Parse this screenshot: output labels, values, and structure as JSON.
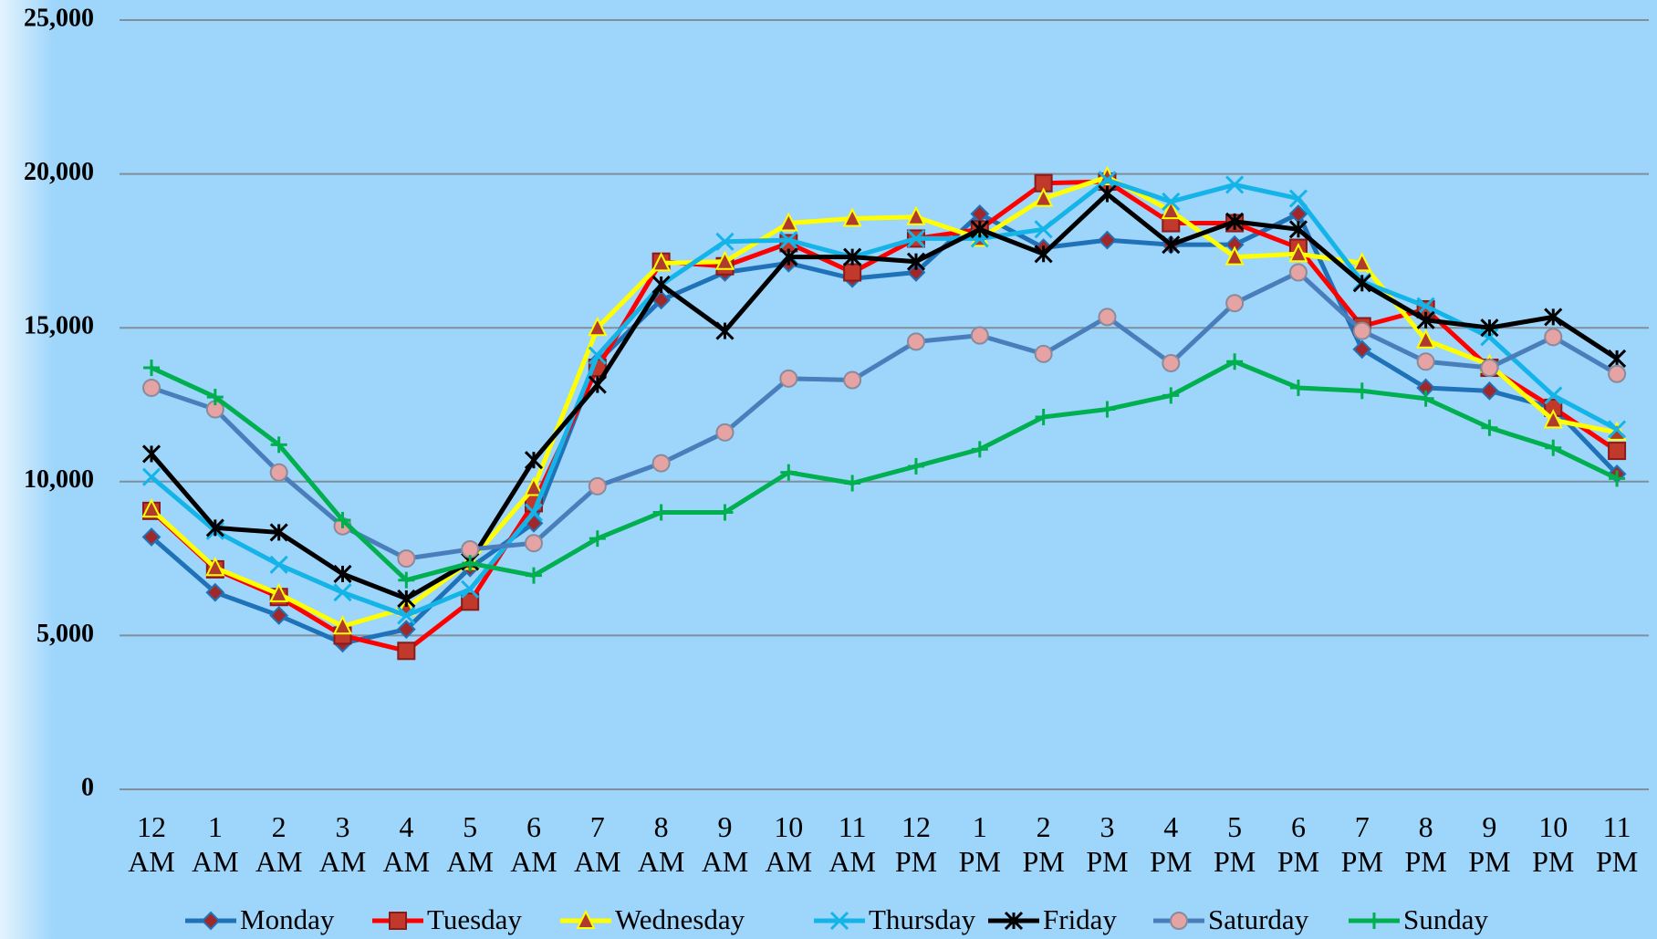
{
  "chart_data": {
    "type": "line",
    "categories": [
      "12 AM",
      "1 AM",
      "2 AM",
      "3 AM",
      "4 AM",
      "5 AM",
      "6 AM",
      "7 AM",
      "8 AM",
      "9 AM",
      "10 AM",
      "11 AM",
      "12 PM",
      "1 PM",
      "2 PM",
      "3 PM",
      "4 PM",
      "5 PM",
      "6 PM",
      "7 PM",
      "8 PM",
      "9 PM",
      "10 PM",
      "11 PM"
    ],
    "ylim": [
      0,
      25000
    ],
    "yticks": [
      0,
      {
        "value": 5000,
        "label": "5,000"
      },
      {
        "value": 10000,
        "label": "10,000"
      },
      {
        "value": 15000,
        "label": "15,000"
      },
      {
        "value": 20000,
        "label": "20,000"
      },
      {
        "value": 25000,
        "label": "25,000"
      }
    ],
    "grid": true,
    "legend": "bottom",
    "series": [
      {
        "name": "Monday",
        "color": "#1f72b8",
        "marker": "diamond",
        "marker_color": "#a0282a",
        "values": [
          8200,
          6400,
          5650,
          4750,
          5200,
          7200,
          8650,
          13900,
          15900,
          16800,
          17100,
          16600,
          16800,
          18700,
          17600,
          17850,
          17700,
          17700,
          18700,
          14300,
          13050,
          12950,
          12400,
          10250
        ]
      },
      {
        "name": "Tuesday",
        "color": "#ff0000",
        "marker": "square",
        "marker_color": "#c0392b",
        "values": [
          9050,
          7150,
          6250,
          5000,
          4500,
          6100,
          9300,
          13700,
          17150,
          17000,
          17750,
          16800,
          17900,
          18200,
          19700,
          19750,
          18400,
          18400,
          17600,
          15050,
          15600,
          13700,
          12400,
          11000
        ]
      },
      {
        "name": "Wednesday",
        "color": "#ffff00",
        "marker": "triangle",
        "marker_color": "#b03a2e",
        "values": [
          9100,
          7200,
          6350,
          5300,
          5900,
          7400,
          9800,
          15000,
          17100,
          17150,
          18400,
          18550,
          18600,
          17900,
          19200,
          19900,
          18800,
          17300,
          17400,
          17100,
          14600,
          13800,
          12000,
          11600
        ]
      },
      {
        "name": "Thursday",
        "color": "#14b4e8",
        "marker": "x",
        "marker_color": "#14b4e8",
        "values": [
          10150,
          8400,
          7300,
          6400,
          5650,
          6500,
          9000,
          14100,
          16400,
          17800,
          17850,
          17300,
          17900,
          17900,
          18200,
          19800,
          19100,
          19650,
          19200,
          16500,
          15700,
          14700,
          12800,
          11700
        ]
      },
      {
        "name": "Friday",
        "color": "#000000",
        "marker": "star",
        "marker_color": "#000000",
        "values": [
          10900,
          8500,
          8350,
          7000,
          6200,
          7400,
          10700,
          13150,
          16400,
          14900,
          17300,
          17300,
          17150,
          18200,
          17400,
          19350,
          17700,
          18450,
          18200,
          16450,
          15250,
          15000,
          15350,
          14000
        ]
      },
      {
        "name": "Saturday",
        "color": "#4a7ebb",
        "marker": "circle",
        "marker_color": "#e6a3a3",
        "values": [
          13050,
          12350,
          10300,
          8550,
          7500,
          7800,
          8000,
          9850,
          10600,
          11600,
          13350,
          13300,
          14550,
          14750,
          14150,
          15350,
          13850,
          15800,
          16800,
          14900,
          13900,
          13700,
          14700,
          13500
        ]
      },
      {
        "name": "Sunday",
        "color": "#00b050",
        "marker": "plus",
        "marker_color": "#00b050",
        "values": [
          13700,
          12750,
          11200,
          8750,
          6800,
          7350,
          6950,
          8150,
          9000,
          9000,
          10300,
          9950,
          10500,
          11050,
          12100,
          12350,
          12800,
          13900,
          13050,
          12950,
          12700,
          11750,
          11100,
          10100
        ]
      }
    ]
  }
}
